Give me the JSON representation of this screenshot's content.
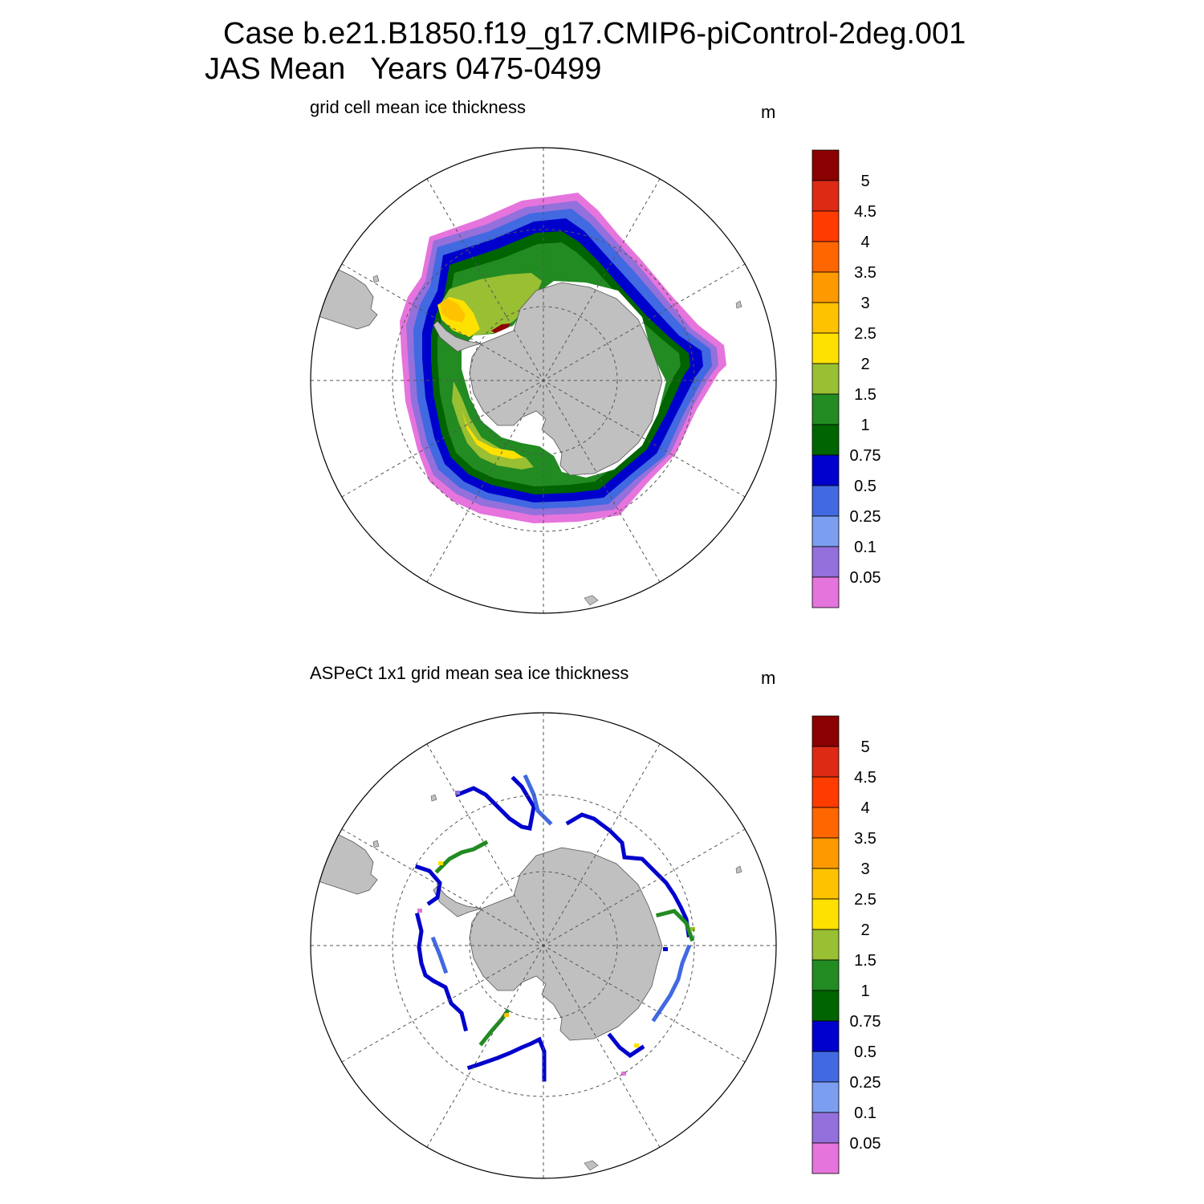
{
  "header": {
    "line1": "Case b.e21.B1850.f19_g17.CMIP6-piControl-2deg.001",
    "line2": "JAS Mean   Years 0475-0499"
  },
  "panels": [
    {
      "title": "grid cell mean ice thickness",
      "units": "m"
    },
    {
      "title": "ASPeCt 1x1 grid mean sea ice thickness",
      "units": "m"
    }
  ],
  "colorbar": {
    "labels": [
      "5",
      "4.5",
      "4",
      "3.5",
      "3",
      "2.5",
      "2",
      "1.5",
      "1",
      "0.75",
      "0.5",
      "0.25",
      "0.1",
      "0.05"
    ],
    "colors": [
      "#8b0000",
      "#dd2a14",
      "#ff3c00",
      "#ff6600",
      "#ff9900",
      "#ffc200",
      "#ffe100",
      "#99bf33",
      "#228b22",
      "#006400",
      "#0000cd",
      "#4169e1",
      "#7b9ef0",
      "#9370db",
      "#e674dd"
    ]
  },
  "chart_data": {
    "type": "map",
    "projection": "south polar stereographic",
    "variable": "sea ice thickness",
    "units": "m",
    "levels": [
      0.05,
      0.1,
      0.25,
      0.5,
      0.75,
      1,
      1.5,
      2,
      2.5,
      3,
      3.5,
      4,
      4.5,
      5
    ],
    "land_color": "#c0c0c0"
  }
}
